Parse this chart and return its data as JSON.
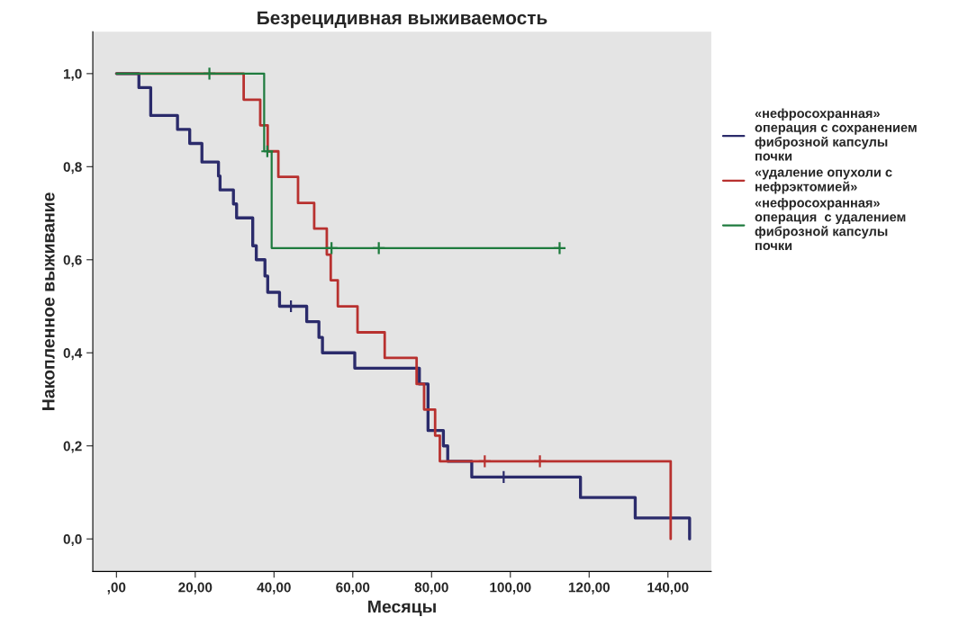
{
  "chart_data": {
    "type": "step",
    "title": "Безрецидивная выживаемость",
    "xlabel": "Месяцы",
    "ylabel": "Накопленное выживание",
    "xlim": [
      -6,
      151
    ],
    "ylim": [
      -0.07,
      1.09
    ],
    "xticks": [
      {
        "value": 0,
        "label": ",00"
      },
      {
        "value": 20,
        "label": "20,00"
      },
      {
        "value": 40,
        "label": "40,00"
      },
      {
        "value": 60,
        "label": "60,00"
      },
      {
        "value": 80,
        "label": "80,00"
      },
      {
        "value": 100,
        "label": "100,00"
      },
      {
        "value": 120,
        "label": "120,00"
      },
      {
        "value": 140,
        "label": "140,00"
      }
    ],
    "yticks": [
      {
        "value": 0,
        "label": "0,0"
      },
      {
        "value": 0.2,
        "label": "0,2"
      },
      {
        "value": 0.4,
        "label": "0,4"
      },
      {
        "value": 0.6,
        "label": "0,6"
      },
      {
        "value": 0.8,
        "label": "0,8"
      },
      {
        "value": 1.0,
        "label": "1,0"
      }
    ],
    "grid": false,
    "legend": "right",
    "series": [
      {
        "name": "«нефросохранная»\nоперация с сохранением\nфиброзной капсулы\nпочки",
        "color": "#2b2b6b",
        "x": [
          0,
          5.7,
          8.7,
          15.5,
          18.6,
          21.7,
          25.9,
          26.3,
          29.7,
          30.5,
          34.6,
          35.5,
          37.7,
          38.4,
          41.4,
          48.3,
          51.4,
          52.3,
          60.5,
          76.9,
          79.1,
          83,
          84.1,
          90.2,
          117.8,
          131.7,
          145.5
        ],
        "values": [
          1.0,
          0.97,
          0.91,
          0.88,
          0.85,
          0.81,
          0.78,
          0.75,
          0.72,
          0.69,
          0.63,
          0.6,
          0.565,
          0.53,
          0.5,
          0.467,
          0.433,
          0.4,
          0.367,
          0.333,
          0.233,
          0.2,
          0.167,
          0.133,
          0.089,
          0.045,
          0.0
        ]
      },
      {
        "name": "«удаление опухоли с\nнефрэктомией»",
        "color": "#b8312f",
        "x": [
          0,
          32.3,
          36.5,
          38.4,
          41.1,
          46.1,
          50.2,
          53.4,
          54.4,
          56.2,
          61.2,
          68.1,
          76.2,
          78.1,
          80.9,
          82.1,
          140.7
        ],
        "values": [
          1.0,
          0.944,
          0.889,
          0.833,
          0.778,
          0.722,
          0.667,
          0.611,
          0.556,
          0.5,
          0.444,
          0.389,
          0.333,
          0.278,
          0.222,
          0.167,
          0.0
        ]
      },
      {
        "name": "«нефросохранная»\nоперация  с удалением\nфиброзной капсулы\nпочки",
        "color": "#1e7b3e",
        "x": [
          0,
          37.5,
          39.4,
          112.5
        ],
        "values": [
          1.0,
          0.833,
          0.625,
          0.625
        ]
      },
      {
        "type": "scatter",
        "marker": "cross",
        "color": "#2b2b6b",
        "x": [
          44.3,
          98.3
        ],
        "values": [
          0.5,
          0.133
        ]
      },
      {
        "type": "scatter",
        "marker": "cross",
        "color": "#b8312f",
        "x": [
          93.5,
          107.5
        ],
        "values": [
          0.167,
          0.167
        ]
      },
      {
        "type": "scatter",
        "marker": "cross",
        "color": "#1e7b3e",
        "x": [
          23.6,
          38.3,
          54.6,
          66.6,
          112.5
        ],
        "values": [
          1.0,
          0.833,
          0.625,
          0.625,
          0.625
        ]
      }
    ]
  }
}
